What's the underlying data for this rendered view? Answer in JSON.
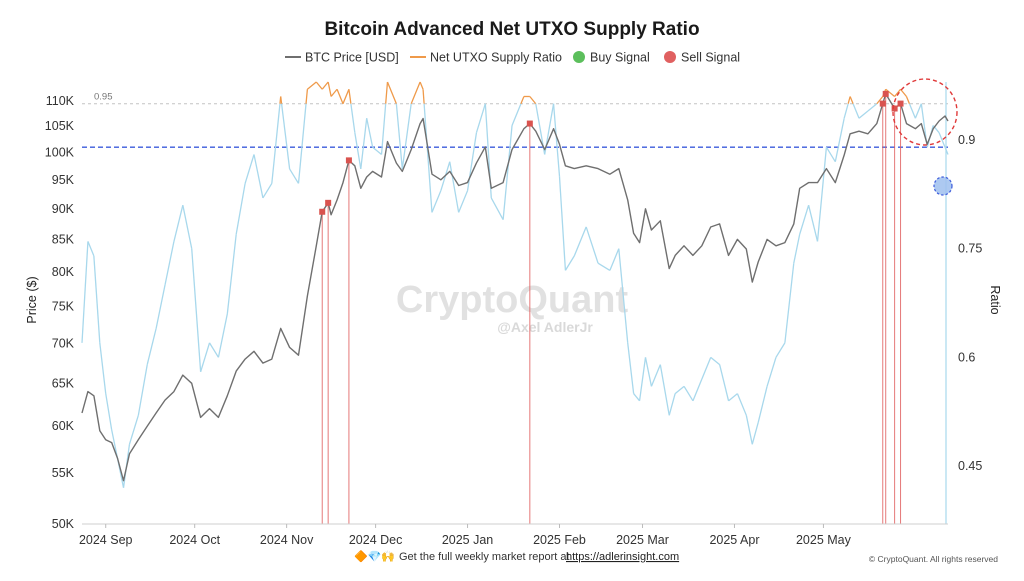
{
  "chart_data": {
    "type": "line",
    "title": "Bitcoin Advanced Net UTXO Supply Ratio",
    "legend": {
      "placement": "top-center",
      "entries": [
        {
          "label": "BTC Price [USD]",
          "color": "#6f6f6f",
          "marker": "line"
        },
        {
          "label": "Net UTXO Supply Ratio",
          "color": "#ef9a4a",
          "marker": "line"
        },
        {
          "label": "Buy Signal",
          "color": "#5cbf5c",
          "marker": "dot"
        },
        {
          "label": "Sell Signal",
          "color": "#e06060",
          "marker": "dot"
        }
      ]
    },
    "y_left": {
      "label": "Price ($)",
      "scale": "log",
      "range": [
        50000,
        114000
      ],
      "ticks": [
        50000,
        55000,
        60000,
        65000,
        70000,
        75000,
        80000,
        85000,
        90000,
        95000,
        100000,
        105000,
        110000
      ],
      "tick_labels": [
        "50K",
        "55K",
        "60K",
        "65K",
        "70K",
        "75K",
        "80K",
        "85K",
        "90K",
        "95K",
        "100K",
        "105K",
        "110K"
      ]
    },
    "y_right": {
      "label": "Ratio",
      "range": [
        0.37,
        0.98
      ],
      "ticks": [
        0.45,
        0.6,
        0.75,
        0.9
      ],
      "tick_labels": [
        "0.45",
        "0.6",
        "0.75",
        "0.9"
      ]
    },
    "x_axis": {
      "range": [
        "2024-08-24",
        "2025-06-12"
      ],
      "ticks": [
        "2024-09-01",
        "2024-10-01",
        "2024-11-01",
        "2024-12-01",
        "2025-01-01",
        "2025-02-01",
        "2025-03-01",
        "2025-04-01",
        "2025-05-01"
      ],
      "tick_labels": [
        "2024 Sep",
        "2024 Oct",
        "2024 Nov",
        "2024 Dec",
        "2025 Jan",
        "2025 Feb",
        "2025 Mar",
        "2025 Apr",
        "2025 May"
      ]
    },
    "grid": false,
    "threshold": {
      "value": 0.95,
      "label": "0.95"
    },
    "reference_line": {
      "value": 0.89,
      "color": "#3b5bdb"
    },
    "series": [
      {
        "name": "BTC Price [USD]",
        "axis": "left",
        "color": "#6f6f6f",
        "points": [
          [
            "2024-08-24",
            61500
          ],
          [
            "2024-08-26",
            64000
          ],
          [
            "2024-08-28",
            63500
          ],
          [
            "2024-08-30",
            59500
          ],
          [
            "2024-09-01",
            58500
          ],
          [
            "2024-09-03",
            58200
          ],
          [
            "2024-09-05",
            56500
          ],
          [
            "2024-09-07",
            54200
          ],
          [
            "2024-09-09",
            57000
          ],
          [
            "2024-09-12",
            58500
          ],
          [
            "2024-09-15",
            60000
          ],
          [
            "2024-09-18",
            61500
          ],
          [
            "2024-09-21",
            63000
          ],
          [
            "2024-09-24",
            64000
          ],
          [
            "2024-09-27",
            66000
          ],
          [
            "2024-09-30",
            65000
          ],
          [
            "2024-10-03",
            61000
          ],
          [
            "2024-10-06",
            62000
          ],
          [
            "2024-10-09",
            61000
          ],
          [
            "2024-10-12",
            63500
          ],
          [
            "2024-10-15",
            66500
          ],
          [
            "2024-10-18",
            68000
          ],
          [
            "2024-10-21",
            69000
          ],
          [
            "2024-10-24",
            67500
          ],
          [
            "2024-10-27",
            68000
          ],
          [
            "2024-10-30",
            72000
          ],
          [
            "2024-11-02",
            69500
          ],
          [
            "2024-11-05",
            68500
          ],
          [
            "2024-11-08",
            76500
          ],
          [
            "2024-11-11",
            84000
          ],
          [
            "2024-11-13",
            89500
          ],
          [
            "2024-11-15",
            91000
          ],
          [
            "2024-11-16",
            89000
          ],
          [
            "2024-11-18",
            91500
          ],
          [
            "2024-11-20",
            94500
          ],
          [
            "2024-11-22",
            98500
          ],
          [
            "2024-11-24",
            97500
          ],
          [
            "2024-11-26",
            93500
          ],
          [
            "2024-11-28",
            95500
          ],
          [
            "2024-11-30",
            96500
          ],
          [
            "2024-12-03",
            95500
          ],
          [
            "2024-12-05",
            102000
          ],
          [
            "2024-12-08",
            98000
          ],
          [
            "2024-12-10",
            96500
          ],
          [
            "2024-12-13",
            100500
          ],
          [
            "2024-12-16",
            105500
          ],
          [
            "2024-12-17",
            106500
          ],
          [
            "2024-12-20",
            96000
          ],
          [
            "2024-12-23",
            95000
          ],
          [
            "2024-12-26",
            96500
          ],
          [
            "2024-12-29",
            94000
          ],
          [
            "2025-01-01",
            94500
          ],
          [
            "2025-01-04",
            98000
          ],
          [
            "2025-01-07",
            101000
          ],
          [
            "2025-01-09",
            93500
          ],
          [
            "2025-01-13",
            94500
          ],
          [
            "2025-01-16",
            100500
          ],
          [
            "2025-01-20",
            104500
          ],
          [
            "2025-01-22",
            105500
          ],
          [
            "2025-01-24",
            104000
          ],
          [
            "2025-01-27",
            100500
          ],
          [
            "2025-01-30",
            104500
          ],
          [
            "2025-02-01",
            101500
          ],
          [
            "2025-02-03",
            97500
          ],
          [
            "2025-02-06",
            97000
          ],
          [
            "2025-02-10",
            97500
          ],
          [
            "2025-02-14",
            97000
          ],
          [
            "2025-02-18",
            96000
          ],
          [
            "2025-02-21",
            97000
          ],
          [
            "2025-02-24",
            91500
          ],
          [
            "2025-02-26",
            86000
          ],
          [
            "2025-02-28",
            84500
          ],
          [
            "2025-03-02",
            90000
          ],
          [
            "2025-03-04",
            86500
          ],
          [
            "2025-03-07",
            88000
          ],
          [
            "2025-03-10",
            80500
          ],
          [
            "2025-03-12",
            82500
          ],
          [
            "2025-03-15",
            84000
          ],
          [
            "2025-03-18",
            82500
          ],
          [
            "2025-03-21",
            84000
          ],
          [
            "2025-03-24",
            87000
          ],
          [
            "2025-03-27",
            87500
          ],
          [
            "2025-03-30",
            82500
          ],
          [
            "2025-04-02",
            85000
          ],
          [
            "2025-04-05",
            83500
          ],
          [
            "2025-04-07",
            78500
          ],
          [
            "2025-04-09",
            81500
          ],
          [
            "2025-04-12",
            85000
          ],
          [
            "2025-04-15",
            84000
          ],
          [
            "2025-04-18",
            84500
          ],
          [
            "2025-04-21",
            87500
          ],
          [
            "2025-04-23",
            93500
          ],
          [
            "2025-04-26",
            94500
          ],
          [
            "2025-04-29",
            94500
          ],
          [
            "2025-05-02",
            97000
          ],
          [
            "2025-05-05",
            94500
          ],
          [
            "2025-05-08",
            99500
          ],
          [
            "2025-05-10",
            103500
          ],
          [
            "2025-05-13",
            104000
          ],
          [
            "2025-05-16",
            103500
          ],
          [
            "2025-05-19",
            105500
          ],
          [
            "2025-05-21",
            109500
          ],
          [
            "2025-05-22",
            111500
          ],
          [
            "2025-05-25",
            108500
          ],
          [
            "2025-05-27",
            109500
          ],
          [
            "2025-05-29",
            105500
          ],
          [
            "2025-06-01",
            104500
          ],
          [
            "2025-06-03",
            105500
          ],
          [
            "2025-06-05",
            101500
          ],
          [
            "2025-06-07",
            104500
          ],
          [
            "2025-06-09",
            106000
          ],
          [
            "2025-06-11",
            107000
          ],
          [
            "2025-06-12",
            106000
          ]
        ]
      },
      {
        "name": "Net UTXO Supply Ratio",
        "axis": "right",
        "color_below_threshold": "#a8d8ec",
        "color_above_threshold": "#ef9a4a",
        "points": [
          [
            "2024-08-24",
            0.62
          ],
          [
            "2024-08-26",
            0.76
          ],
          [
            "2024-08-28",
            0.74
          ],
          [
            "2024-08-30",
            0.62
          ],
          [
            "2024-09-01",
            0.55
          ],
          [
            "2024-09-03",
            0.5
          ],
          [
            "2024-09-05",
            0.46
          ],
          [
            "2024-09-07",
            0.42
          ],
          [
            "2024-09-09",
            0.48
          ],
          [
            "2024-09-12",
            0.52
          ],
          [
            "2024-09-15",
            0.59
          ],
          [
            "2024-09-18",
            0.64
          ],
          [
            "2024-09-21",
            0.7
          ],
          [
            "2024-09-24",
            0.76
          ],
          [
            "2024-09-27",
            0.81
          ],
          [
            "2024-09-30",
            0.75
          ],
          [
            "2024-10-03",
            0.58
          ],
          [
            "2024-10-06",
            0.62
          ],
          [
            "2024-10-09",
            0.6
          ],
          [
            "2024-10-12",
            0.66
          ],
          [
            "2024-10-15",
            0.77
          ],
          [
            "2024-10-18",
            0.84
          ],
          [
            "2024-10-21",
            0.88
          ],
          [
            "2024-10-24",
            0.82
          ],
          [
            "2024-10-27",
            0.84
          ],
          [
            "2024-10-30",
            0.96
          ],
          [
            "2024-11-02",
            0.86
          ],
          [
            "2024-11-05",
            0.84
          ],
          [
            "2024-11-08",
            0.97
          ],
          [
            "2024-11-11",
            0.98
          ],
          [
            "2024-11-13",
            0.97
          ],
          [
            "2024-11-15",
            0.98
          ],
          [
            "2024-11-16",
            0.96
          ],
          [
            "2024-11-18",
            0.97
          ],
          [
            "2024-11-20",
            0.95
          ],
          [
            "2024-11-22",
            0.97
          ],
          [
            "2024-11-24",
            0.91
          ],
          [
            "2024-11-26",
            0.86
          ],
          [
            "2024-11-28",
            0.93
          ],
          [
            "2024-11-30",
            0.89
          ],
          [
            "2024-12-03",
            0.88
          ],
          [
            "2024-12-05",
            0.98
          ],
          [
            "2024-12-08",
            0.95
          ],
          [
            "2024-12-10",
            0.86
          ],
          [
            "2024-12-13",
            0.95
          ],
          [
            "2024-12-16",
            0.98
          ],
          [
            "2024-12-17",
            0.97
          ],
          [
            "2024-12-20",
            0.8
          ],
          [
            "2024-12-23",
            0.83
          ],
          [
            "2024-12-26",
            0.87
          ],
          [
            "2024-12-29",
            0.8
          ],
          [
            "2025-01-01",
            0.83
          ],
          [
            "2025-01-04",
            0.91
          ],
          [
            "2025-01-07",
            0.95
          ],
          [
            "2025-01-09",
            0.82
          ],
          [
            "2025-01-13",
            0.79
          ],
          [
            "2025-01-16",
            0.92
          ],
          [
            "2025-01-20",
            0.96
          ],
          [
            "2025-01-22",
            0.96
          ],
          [
            "2025-01-24",
            0.95
          ],
          [
            "2025-01-27",
            0.88
          ],
          [
            "2025-01-30",
            0.95
          ],
          [
            "2025-02-01",
            0.85
          ],
          [
            "2025-02-03",
            0.72
          ],
          [
            "2025-02-06",
            0.74
          ],
          [
            "2025-02-10",
            0.78
          ],
          [
            "2025-02-14",
            0.73
          ],
          [
            "2025-02-18",
            0.72
          ],
          [
            "2025-02-21",
            0.75
          ],
          [
            "2025-02-24",
            0.62
          ],
          [
            "2025-02-26",
            0.55
          ],
          [
            "2025-02-28",
            0.54
          ],
          [
            "2025-03-02",
            0.6
          ],
          [
            "2025-03-04",
            0.56
          ],
          [
            "2025-03-07",
            0.59
          ],
          [
            "2025-03-10",
            0.52
          ],
          [
            "2025-03-12",
            0.55
          ],
          [
            "2025-03-15",
            0.56
          ],
          [
            "2025-03-18",
            0.54
          ],
          [
            "2025-03-21",
            0.57
          ],
          [
            "2025-03-24",
            0.6
          ],
          [
            "2025-03-27",
            0.59
          ],
          [
            "2025-03-30",
            0.54
          ],
          [
            "2025-04-02",
            0.55
          ],
          [
            "2025-04-05",
            0.52
          ],
          [
            "2025-04-07",
            0.48
          ],
          [
            "2025-04-09",
            0.51
          ],
          [
            "2025-04-12",
            0.56
          ],
          [
            "2025-04-15",
            0.6
          ],
          [
            "2025-04-18",
            0.62
          ],
          [
            "2025-04-21",
            0.73
          ],
          [
            "2025-04-23",
            0.77
          ],
          [
            "2025-04-26",
            0.81
          ],
          [
            "2025-04-29",
            0.76
          ],
          [
            "2025-05-02",
            0.89
          ],
          [
            "2025-05-05",
            0.87
          ],
          [
            "2025-05-08",
            0.93
          ],
          [
            "2025-05-10",
            0.96
          ],
          [
            "2025-05-13",
            0.93
          ],
          [
            "2025-05-16",
            0.94
          ],
          [
            "2025-05-19",
            0.95
          ],
          [
            "2025-05-21",
            0.96
          ],
          [
            "2025-05-22",
            0.97
          ],
          [
            "2025-05-25",
            0.96
          ],
          [
            "2025-05-27",
            0.97
          ],
          [
            "2025-05-29",
            0.96
          ],
          [
            "2025-06-01",
            0.93
          ],
          [
            "2025-06-03",
            0.95
          ],
          [
            "2025-06-05",
            0.89
          ],
          [
            "2025-06-07",
            0.92
          ],
          [
            "2025-06-09",
            0.91
          ],
          [
            "2025-06-11",
            0.89
          ],
          [
            "2025-06-12",
            0.88
          ]
        ]
      }
    ],
    "sell_signals": [
      {
        "x": "2024-11-13",
        "price": 89500
      },
      {
        "x": "2024-11-15",
        "price": 91000
      },
      {
        "x": "2024-11-22",
        "price": 98500
      },
      {
        "x": "2025-01-22",
        "price": 105500
      },
      {
        "x": "2025-05-21",
        "price": 109500
      },
      {
        "x": "2025-05-22",
        "price": 111500
      },
      {
        "x": "2025-05-25",
        "price": 108500
      },
      {
        "x": "2025-05-27",
        "price": 109500
      }
    ],
    "buy_signals": [],
    "watermark": {
      "text": "CryptoQuant",
      "author": "@Axel AdlerJr"
    }
  },
  "footer": {
    "emoji": "🔶💎🙌",
    "text": "Get the full weekly market report at",
    "link": "https://adlerinsight.com",
    "copyright": "© CryptoQuant. All rights reserved"
  }
}
